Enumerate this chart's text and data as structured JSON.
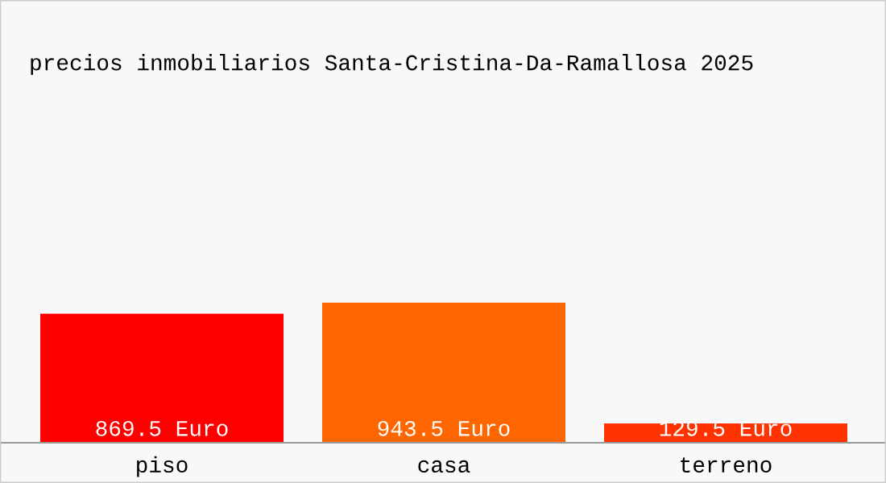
{
  "chart_data": {
    "type": "bar",
    "title": "precios inmobiliarios Santa-Cristina-Da-Ramallosa 2025",
    "categories": [
      "piso",
      "casa",
      "terreno"
    ],
    "values": [
      869.5,
      943.5,
      129.5
    ],
    "value_labels": [
      "869.5 Euro",
      "943.5 Euro",
      "129.5 Euro"
    ],
    "colors": [
      "#ff0000",
      "#ff6600",
      "#ff3300"
    ],
    "grid": false,
    "legend": false
  }
}
